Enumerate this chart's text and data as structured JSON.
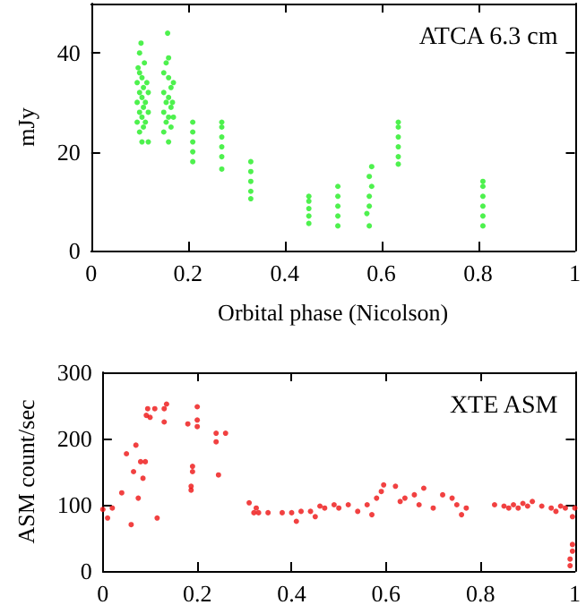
{
  "chart_data": [
    {
      "type": "scatter",
      "xlabel": "Orbital phase (Nicolson)",
      "ylabel": "mJy",
      "annotations": [
        "ATCA 6.3 cm"
      ],
      "xlim": [
        0,
        1
      ],
      "xticks": [
        0,
        0.2,
        0.4,
        0.6,
        0.8,
        1
      ],
      "ylim": [
        0,
        50
      ],
      "yticks": [
        0,
        20,
        40
      ],
      "marker": "circle",
      "series": [
        {
          "color": "#22ee22",
          "x": [
            0.095,
            0.095,
            0.095,
            0.097,
            0.1,
            0.1,
            0.1,
            0.1,
            0.1,
            0.103,
            0.105,
            0.105,
            0.105,
            0.105,
            0.108,
            0.108,
            0.108,
            0.11,
            0.112,
            0.112,
            0.115,
            0.118,
            0.118,
            0.118,
            0.15,
            0.15,
            0.15,
            0.15,
            0.155,
            0.155,
            0.155,
            0.158,
            0.16,
            0.16,
            0.16,
            0.16,
            0.16,
            0.165,
            0.165,
            0.165,
            0.168,
            0.17,
            0.17,
            0.21,
            0.21,
            0.21,
            0.21,
            0.21,
            0.27,
            0.27,
            0.27,
            0.27,
            0.27,
            0.27,
            0.33,
            0.33,
            0.33,
            0.33,
            0.33,
            0.45,
            0.45,
            0.45,
            0.45,
            0.45,
            0.51,
            0.51,
            0.51,
            0.51,
            0.51,
            0.575,
            0.57,
            0.575,
            0.575,
            0.58,
            0.575,
            0.58,
            0.635,
            0.635,
            0.635,
            0.635,
            0.635,
            0.635,
            0.81,
            0.81,
            0.81,
            0.81,
            0.81,
            0.81
          ],
          "values": [
            26,
            30,
            34,
            37,
            24,
            28,
            32,
            36,
            40,
            42,
            22,
            27,
            31,
            35,
            25,
            29,
            33,
            38,
            26,
            30,
            34,
            22,
            28,
            32,
            24,
            28,
            32,
            36,
            38,
            30,
            26,
            44,
            22,
            27,
            31,
            35,
            39,
            25,
            29,
            33,
            30,
            27,
            34,
            18,
            20,
            22,
            24,
            26,
            16.5,
            19,
            21,
            23,
            25,
            26,
            10.5,
            12,
            14,
            16,
            18,
            5.5,
            7,
            8.5,
            10,
            11,
            5,
            7,
            9,
            11,
            13,
            5,
            7.5,
            9,
            11,
            13,
            15,
            17,
            17.5,
            19,
            21,
            23,
            25,
            26,
            5,
            7,
            9,
            11,
            13,
            14
          ]
        }
      ]
    },
    {
      "type": "scatter",
      "ylabel": "ASM count/sec",
      "annotations": [
        "XTE ASM"
      ],
      "xlim": [
        0,
        1
      ],
      "xticks": [
        0,
        0.2,
        0.4,
        0.6,
        0.8,
        1
      ],
      "ylim": [
        0,
        300
      ],
      "yticks": [
        0,
        100,
        200,
        300
      ],
      "marker": "circle",
      "series": [
        {
          "color": "#ee1111",
          "x": [
            0.0,
            0.01,
            0.02,
            0.04,
            0.05,
            0.06,
            0.065,
            0.07,
            0.075,
            0.08,
            0.085,
            0.09,
            0.092,
            0.095,
            0.1,
            0.11,
            0.115,
            0.13,
            0.13,
            0.135,
            0.18,
            0.187,
            0.187,
            0.19,
            0.19,
            0.2,
            0.2,
            0.2,
            0.24,
            0.24,
            0.245,
            0.26,
            0.31,
            0.32,
            0.325,
            0.33,
            0.35,
            0.38,
            0.4,
            0.41,
            0.42,
            0.44,
            0.45,
            0.46,
            0.47,
            0.49,
            0.5,
            0.52,
            0.54,
            0.56,
            0.57,
            0.58,
            0.59,
            0.595,
            0.62,
            0.63,
            0.64,
            0.66,
            0.67,
            0.68,
            0.7,
            0.72,
            0.74,
            0.75,
            0.76,
            0.77,
            0.83,
            0.85,
            0.86,
            0.87,
            0.88,
            0.89,
            0.9,
            0.91,
            0.93,
            0.95,
            0.96,
            0.97,
            0.98,
            0.99,
            0.99,
            0.995,
            0.995,
            0.995,
            1.0
          ],
          "values": [
            93,
            80,
            95,
            118,
            177,
            70,
            150,
            190,
            110,
            165,
            140,
            165,
            235,
            245,
            232,
            245,
            80,
            245,
            225,
            252,
            222,
            122,
            128,
            150,
            158,
            248,
            228,
            218,
            195,
            208,
            145,
            208,
            103,
            88,
            95,
            88,
            88,
            88,
            88,
            75,
            90,
            90,
            82,
            98,
            95,
            100,
            95,
            100,
            90,
            100,
            85,
            110,
            120,
            130,
            128,
            105,
            110,
            115,
            100,
            125,
            95,
            115,
            110,
            100,
            85,
            95,
            100,
            98,
            95,
            100,
            95,
            102,
            98,
            105,
            98,
            95,
            90,
            98,
            95,
            8,
            18,
            30,
            40,
            82,
            95
          ]
        }
      ]
    }
  ]
}
